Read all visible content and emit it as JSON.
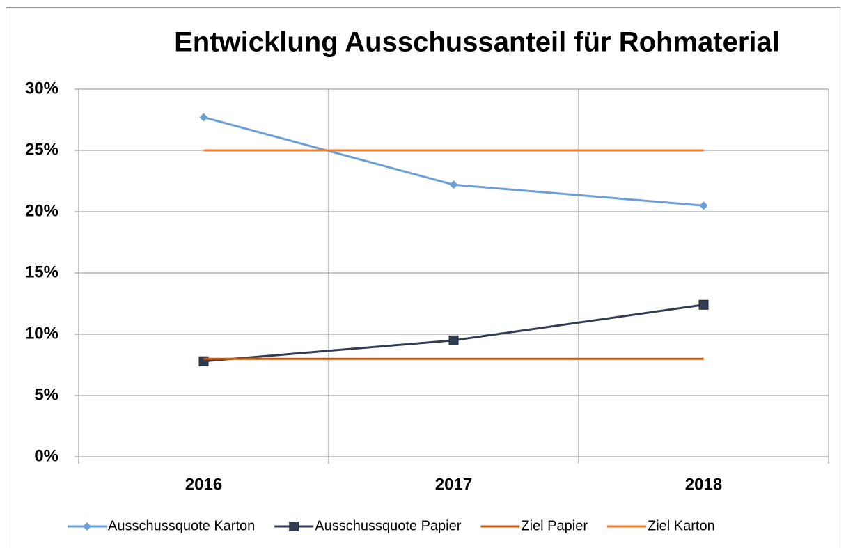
{
  "chart_data": {
    "type": "line",
    "title": "Entwicklung  Ausschussanteil für Rohmaterial",
    "categories": [
      "2016",
      "2017",
      "2018"
    ],
    "series": [
      {
        "name": "Ausschussquote Karton",
        "color": "#6a9fd8",
        "marker": "diamond",
        "values": [
          27.7,
          22.2,
          20.5
        ]
      },
      {
        "name": "Ausschussquote Papier",
        "color": "#313d54",
        "marker": "square",
        "values": [
          7.8,
          9.5,
          12.4
        ]
      },
      {
        "name": "Ziel Papier",
        "color": "#c55a11",
        "marker": "none",
        "values": [
          8,
          8,
          8
        ]
      },
      {
        "name": "Ziel Karton",
        "color": "#ed7d31",
        "marker": "none",
        "values": [
          25,
          25,
          25
        ]
      }
    ],
    "ylim": [
      0,
      30
    ],
    "yticks": [
      {
        "value": 0,
        "label": "0%"
      },
      {
        "value": 5,
        "label": "5%"
      },
      {
        "value": 10,
        "label": "10%"
      },
      {
        "value": 15,
        "label": "15%"
      },
      {
        "value": 20,
        "label": "20%"
      },
      {
        "value": 25,
        "label": "25%"
      },
      {
        "value": 30,
        "label": "30%"
      }
    ],
    "grid": true,
    "legend": "bottom"
  }
}
